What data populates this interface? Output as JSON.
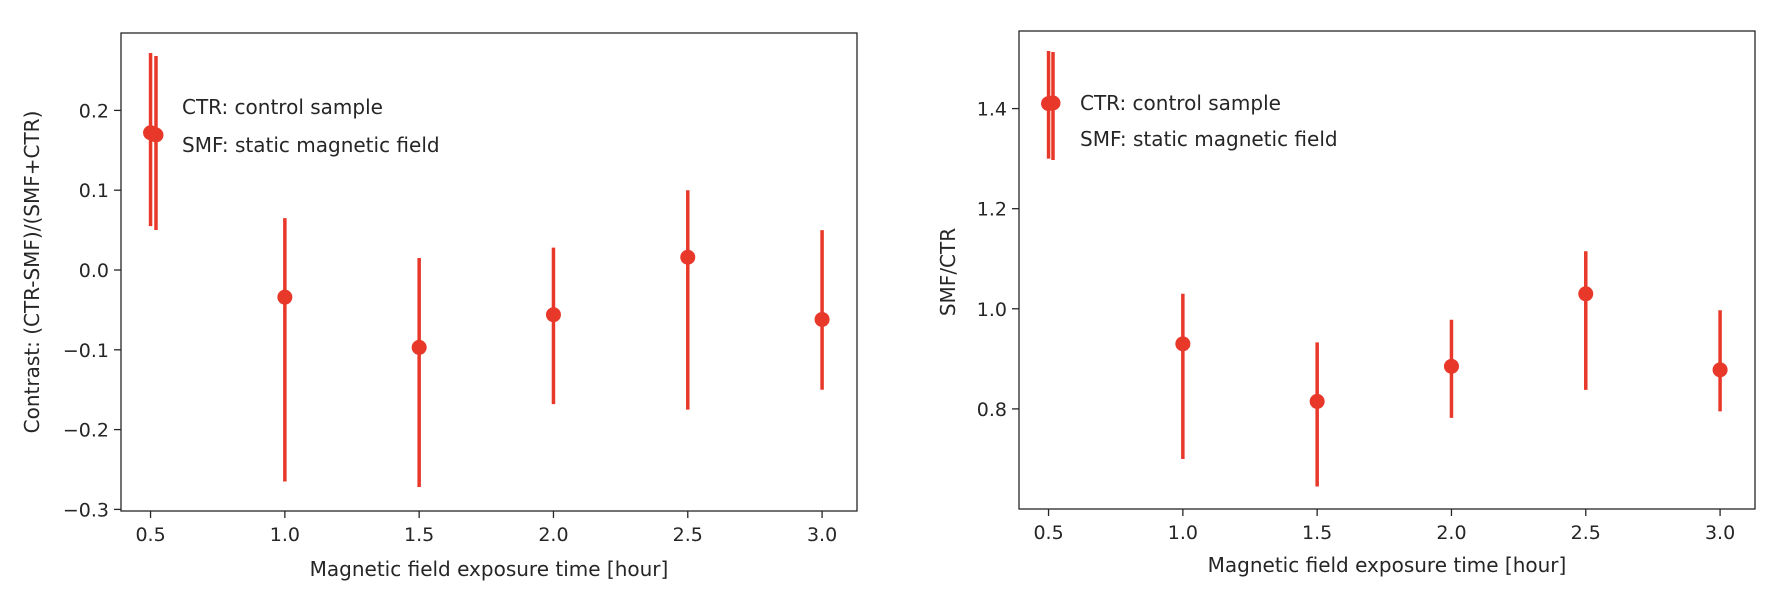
{
  "chart_data": [
    {
      "type": "scatter",
      "style": "errorbar",
      "x": [
        0.5,
        1.0,
        1.5,
        2.0,
        2.5,
        3.0
      ],
      "y": [
        0.172,
        -0.034,
        -0.097,
        -0.056,
        0.016,
        -0.062
      ],
      "yerr_low": [
        0.055,
        -0.265,
        -0.272,
        -0.168,
        -0.175,
        -0.15
      ],
      "yerr_high": [
        0.272,
        0.065,
        0.015,
        0.028,
        0.1,
        0.05
      ],
      "xlabel": "Magnetic field exposure time [hour]",
      "ylabel": "Contrast: (CTR-SMF)/(SMF+CTR)",
      "xlim": [
        0.39,
        3.13
      ],
      "ylim": [
        -0.302,
        0.297
      ],
      "xticks": [
        0.5,
        1.0,
        1.5,
        2.0,
        2.5,
        3.0
      ],
      "xtick_labels": [
        "0.5",
        "1.0",
        "1.5",
        "2.0",
        "2.5",
        "3.0"
      ],
      "yticks": [
        -0.3,
        -0.2,
        -0.1,
        0.0,
        0.1,
        0.2
      ],
      "ytick_labels": [
        "−0.3",
        "−0.2",
        "−0.1",
        "0.0",
        "0.1",
        "0.2"
      ],
      "legend": {
        "placement": "top-left",
        "entries": [
          "CTR: control sample",
          "SMF: static magnetic field"
        ]
      },
      "grid": false,
      "color": "#e8382a"
    },
    {
      "type": "scatter",
      "style": "errorbar",
      "x": [
        0.5,
        1.0,
        1.5,
        2.0,
        2.5,
        3.0
      ],
      "y": [
        1.41,
        0.93,
        0.815,
        0.885,
        1.03,
        0.878
      ],
      "yerr_low": [
        1.3,
        0.7,
        0.645,
        0.782,
        0.838,
        0.795
      ],
      "yerr_high": [
        1.515,
        1.03,
        0.933,
        0.978,
        1.115,
        0.997
      ],
      "xlabel": "Magnetic field exposure time [hour]",
      "ylabel": "SMF/CTR",
      "xlim": [
        0.39,
        3.13
      ],
      "ylim": [
        0.6,
        1.555
      ],
      "xticks": [
        0.5,
        1.0,
        1.5,
        2.0,
        2.5,
        3.0
      ],
      "xtick_labels": [
        "0.5",
        "1.0",
        "1.5",
        "2.0",
        "2.5",
        "3.0"
      ],
      "yticks": [
        0.8,
        1.0,
        1.2,
        1.4
      ],
      "ytick_labels": [
        "0.8",
        "1.0",
        "1.2",
        "1.4"
      ],
      "legend": {
        "placement": "top-left",
        "entries": [
          "CTR: control sample",
          "SMF: static magnetic field"
        ]
      },
      "grid": false,
      "color": "#e8382a"
    }
  ]
}
